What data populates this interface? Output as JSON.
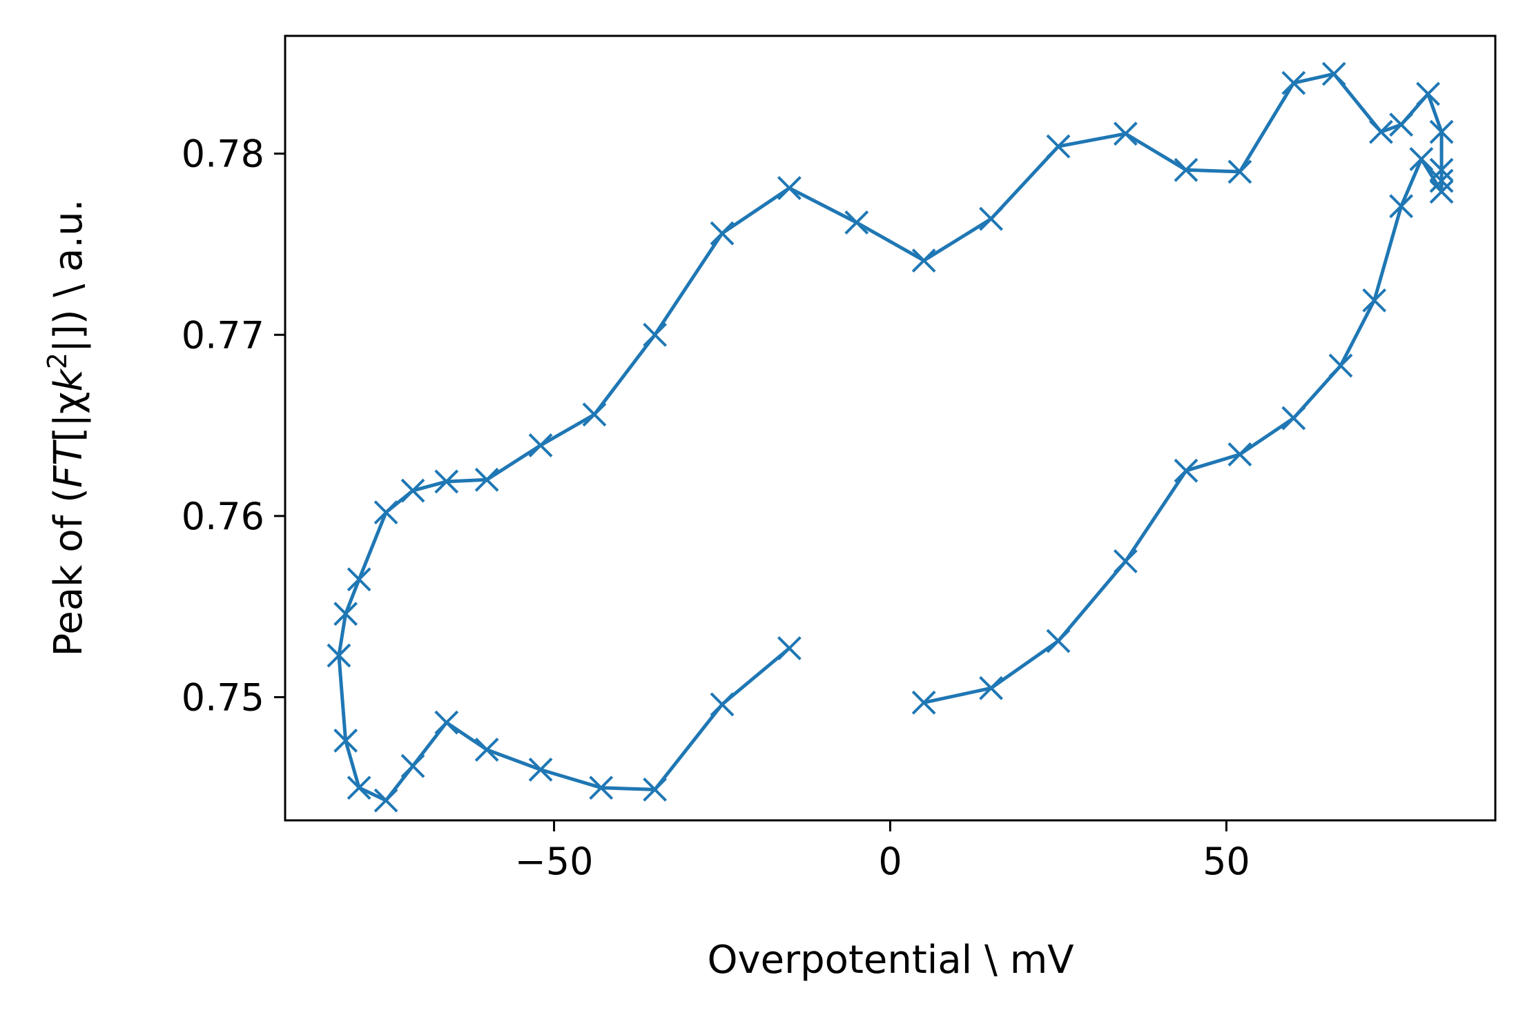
{
  "chart_data": {
    "type": "line",
    "xlabel": "Overpotential \\ mV",
    "ylabel_parts": [
      "Peak of (",
      "FT",
      "[|χ",
      "k",
      "2",
      "|]) \\ a.u."
    ],
    "xlim": [
      -90,
      90
    ],
    "ylim": [
      0.7432,
      0.7865
    ],
    "x_ticks": [
      -50,
      0,
      50
    ],
    "x_tick_labels": [
      "−50",
      "0",
      "50"
    ],
    "y_ticks": [
      0.75,
      0.76,
      0.77,
      0.78
    ],
    "y_tick_labels": [
      "0.75",
      "0.76",
      "0.77",
      "0.78"
    ],
    "grid": false,
    "color": "#1f77b4",
    "marker": "x",
    "series": [
      {
        "points": [
          [
            5,
            0.7497
          ],
          [
            15,
            0.7505
          ],
          [
            25,
            0.7531
          ],
          [
            35,
            0.7575
          ],
          [
            44,
            0.7625
          ],
          [
            52,
            0.7634
          ],
          [
            60,
            0.7654
          ],
          [
            67,
            0.7683
          ],
          [
            72,
            0.7719
          ],
          [
            76,
            0.7771
          ],
          [
            79,
            0.7797
          ],
          [
            82,
            0.7779
          ],
          [
            82,
            0.7785
          ],
          [
            82,
            0.7791
          ],
          [
            82,
            0.7812
          ],
          [
            80,
            0.7833
          ],
          [
            76,
            0.7816
          ],
          [
            73,
            0.7812
          ],
          [
            66,
            0.7844
          ],
          [
            60,
            0.7839
          ],
          [
            52,
            0.779
          ],
          [
            44,
            0.7791
          ],
          [
            35,
            0.7811
          ],
          [
            25,
            0.7804
          ],
          [
            15,
            0.7764
          ],
          [
            5,
            0.7741
          ],
          [
            -5,
            0.7762
          ],
          [
            -15,
            0.7781
          ],
          [
            -25,
            0.7756
          ],
          [
            -35,
            0.77
          ],
          [
            -44,
            0.7656
          ],
          [
            -52,
            0.7639
          ],
          [
            -60,
            0.762
          ],
          [
            -66,
            0.7619
          ],
          [
            -71,
            0.7614
          ],
          [
            -75,
            0.7602
          ],
          [
            -79,
            0.7565
          ],
          [
            -81,
            0.7546
          ],
          [
            -82,
            0.7523
          ],
          [
            -81,
            0.7476
          ],
          [
            -79,
            0.745
          ],
          [
            -75,
            0.7443
          ],
          [
            -71,
            0.7462
          ],
          [
            -66,
            0.7486
          ],
          [
            -60,
            0.7471
          ],
          [
            -52,
            0.746
          ],
          [
            -43,
            0.745
          ],
          [
            -35,
            0.7449
          ],
          [
            -25,
            0.7496
          ],
          [
            -15,
            0.7527
          ]
        ]
      }
    ]
  }
}
